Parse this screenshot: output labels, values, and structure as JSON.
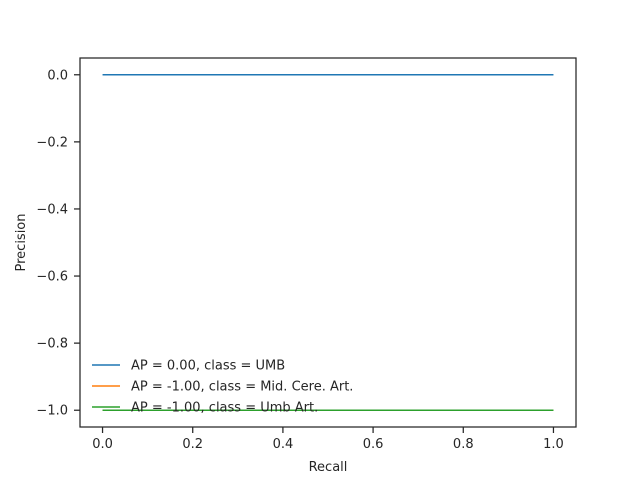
{
  "chart_data": {
    "type": "line",
    "xlabel": "Recall",
    "ylabel": "Precision",
    "xlim": [
      -0.05,
      1.05
    ],
    "ylim": [
      -1.05,
      0.05
    ],
    "x_ticks": [
      0.0,
      0.2,
      0.4,
      0.6,
      0.8,
      1.0
    ],
    "x_tick_labels": [
      "0.0",
      "0.2",
      "0.4",
      "0.6",
      "0.8",
      "1.0"
    ],
    "y_ticks": [
      0.0,
      -0.2,
      -0.4,
      -0.6,
      -0.8,
      -1.0
    ],
    "y_tick_labels": [
      "0.0",
      "−0.2",
      "−0.4",
      "−0.6",
      "−0.8",
      "−1.0"
    ],
    "grid": false,
    "legend_position": "lower-left",
    "series": [
      {
        "name": "AP = 0.00, class = UMB",
        "color": "#1f77b4",
        "x": [
          0.0,
          1.0
        ],
        "y": [
          0.0,
          0.0
        ]
      },
      {
        "name": "AP = -1.00, class = Mid. Cere. Art.",
        "color": "#ff7f0e",
        "x": [
          0.0,
          1.0
        ],
        "y": [
          -1.0,
          -1.0
        ]
      },
      {
        "name": "AP = -1.00, class = Umb Art.",
        "color": "#2ca02c",
        "x": [
          0.0,
          1.0
        ],
        "y": [
          -1.0,
          -1.0
        ]
      }
    ]
  }
}
